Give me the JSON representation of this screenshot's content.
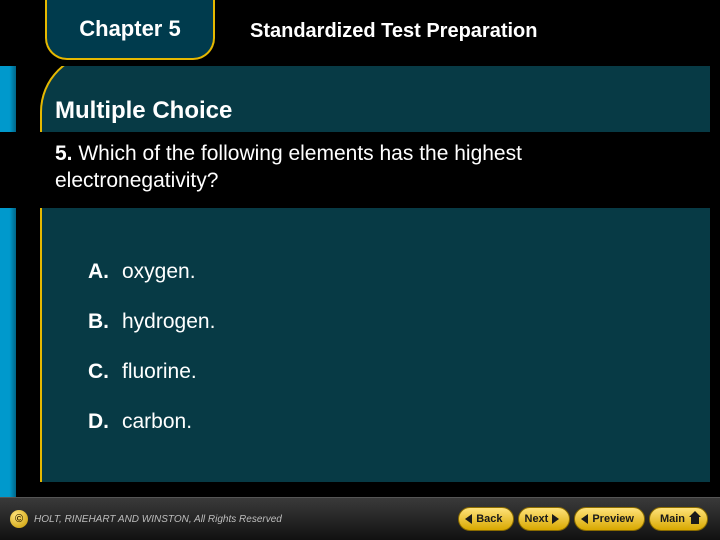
{
  "header": {
    "chapter_label": "Chapter 5",
    "title": "Standardized Test Preparation"
  },
  "section_title": "Multiple Choice",
  "question": {
    "number": "5.",
    "text": "Which of the following elements has the highest electronegativity?"
  },
  "choices": [
    {
      "letter": "A.",
      "text": "oxygen."
    },
    {
      "letter": "B.",
      "text": "hydrogen."
    },
    {
      "letter": "C.",
      "text": "fluorine."
    },
    {
      "letter": "D.",
      "text": "carbon."
    }
  ],
  "footer": {
    "copyright_symbol": "©",
    "copyright_text": "HOLT, RINEHART AND WINSTON, All Rights Reserved",
    "nav": {
      "back": "Back",
      "next": "Next",
      "preview": "Preview",
      "main": "Main"
    }
  },
  "style": {
    "background_color": "#000000",
    "panel_color": "#073a45",
    "accent_gold": "#e6b800",
    "accent_blue": "#0099cc",
    "text_color": "#ffffff",
    "title_fontsize": 22,
    "body_fontsize": 21,
    "footer_fontsize": 10
  }
}
